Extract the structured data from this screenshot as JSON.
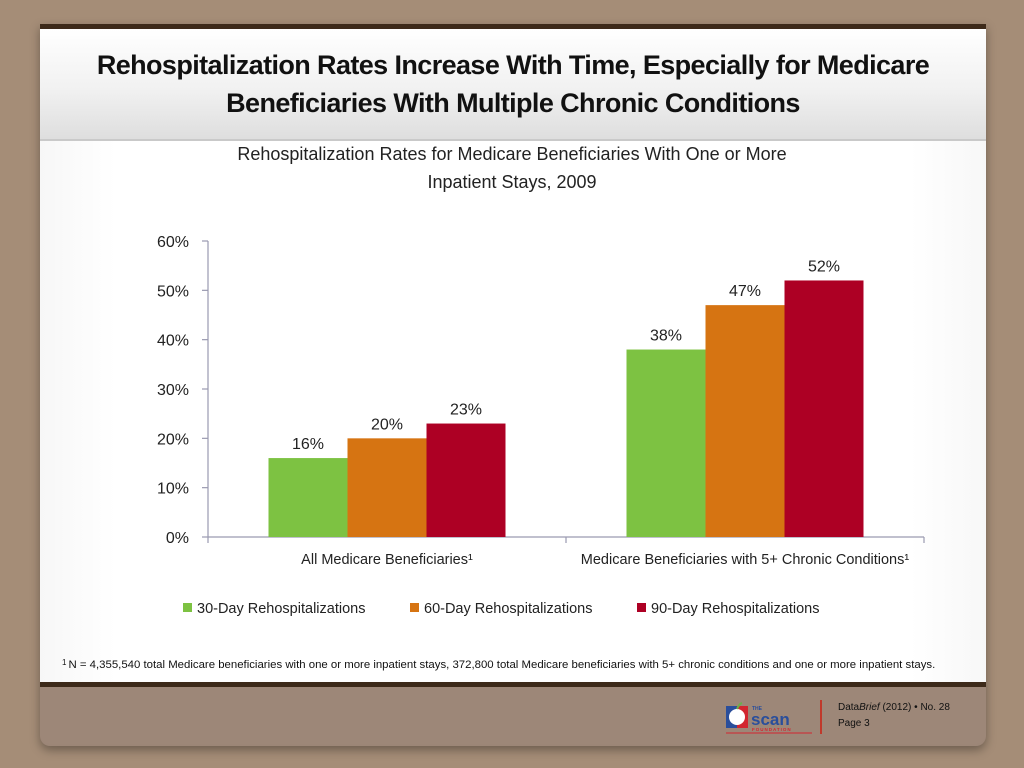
{
  "slide": {
    "title": "Rehospitalization Rates Increase With Time, Especially for Medicare Beneficiaries With Multiple Chronic Conditions",
    "footnote_marker": "1",
    "footnote": "N = 4,355,540 total Medicare beneficiaries with one or more inpatient stays, 372,800 total Medicare beneficiaries with 5+ chronic conditions and one or more inpatient stays.",
    "footer": {
      "brand_prefix": "Data",
      "brand_italic": "Brief",
      "year": "(2012)",
      "bullet": "•",
      "issue": "No. 28",
      "page": "Page 3",
      "logo_top": "THE",
      "logo_main": "scan",
      "logo_sub": "FOUNDATION"
    }
  },
  "colors": {
    "series_30": "#7dc242",
    "series_60": "#d67412",
    "series_90": "#ad0024",
    "axis": "#9a9ab0"
  },
  "chart_data": {
    "type": "bar",
    "title": "Rehospitalization Rates for Medicare Beneficiaries With One or More Inpatient Stays, 2009",
    "title_lines": [
      "Rehospitalization Rates for Medicare Beneficiaries With One or More",
      "Inpatient Stays, 2009"
    ],
    "xlabel": "",
    "ylabel": "",
    "ylim": [
      0,
      60
    ],
    "yticks": [
      0,
      10,
      20,
      30,
      40,
      50,
      60
    ],
    "ytick_labels": [
      "0%",
      "10%",
      "20%",
      "30%",
      "40%",
      "50%",
      "60%"
    ],
    "grid": false,
    "legend_position": "bottom",
    "categories": [
      "All Medicare Beneficiaries¹",
      "Medicare Beneficiaries with 5+ Chronic Conditions¹"
    ],
    "series": [
      {
        "name": "30-Day Rehospitalizations",
        "values": [
          16,
          38
        ],
        "labels": [
          "16%",
          "38%"
        ]
      },
      {
        "name": "60-Day Rehospitalizations",
        "values": [
          20,
          47
        ],
        "labels": [
          "20%",
          "47%"
        ]
      },
      {
        "name": "90-Day Rehospitalizations",
        "values": [
          23,
          52
        ],
        "labels": [
          "23%",
          "52%"
        ]
      }
    ]
  }
}
